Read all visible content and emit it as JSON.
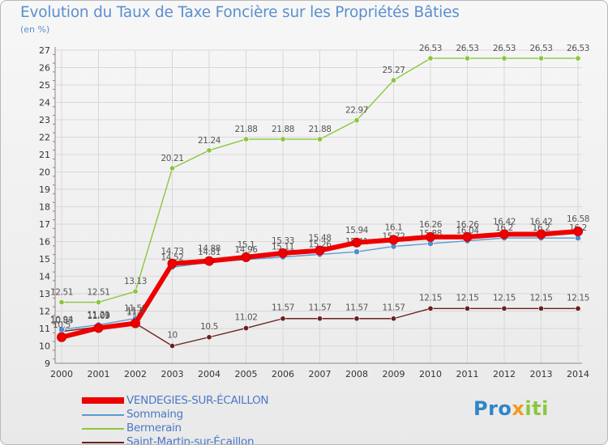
{
  "chart_data": {
    "type": "line",
    "title": "Evolution du Taux de Taxe Foncière sur les Propriétés Bâties",
    "subtitle": "(en %)",
    "xlabel": "",
    "ylabel": "(en %)",
    "ylim": [
      9,
      27
    ],
    "yticks": [
      9,
      10,
      11,
      12,
      13,
      14,
      15,
      16,
      17,
      18,
      19,
      20,
      21,
      22,
      23,
      24,
      25,
      26,
      27
    ],
    "x": [
      "2000",
      "2001",
      "2002",
      "2003",
      "2004",
      "2005",
      "2006",
      "2007",
      "2008",
      "2009",
      "2010",
      "2011",
      "2012",
      "2013",
      "2014"
    ],
    "grid": true,
    "series": [
      {
        "name": "Saint-Martin-sur-Écaillon",
        "color": "#6b2020",
        "values": [
          10.83,
          11.09,
          11.3,
          10,
          10.5,
          11.02,
          11.57,
          11.57,
          11.57,
          11.57,
          12.15,
          12.15,
          12.15,
          12.15,
          12.15
        ],
        "labels": [
          "10.83",
          "11.09",
          "11.3",
          "10",
          "10.5",
          "11.02",
          "11.57",
          "11.57",
          "11.57",
          "11.57",
          "12.15",
          "12.15",
          "12.15",
          "12.15",
          "12.15"
        ]
      },
      {
        "name": "Bermerain",
        "color": "#8cc63e",
        "values": [
          12.51,
          12.51,
          13.13,
          20.21,
          21.24,
          21.88,
          21.88,
          21.88,
          22.97,
          25.27,
          26.53,
          26.53,
          26.53,
          26.53,
          26.53
        ],
        "labels": [
          "12.51",
          "12.51",
          "13.13",
          "20.21",
          "21.24",
          "21.88",
          "21.88",
          "21.88",
          "22.97",
          "25.27",
          "26.53",
          "26.53",
          "26.53",
          "26.53",
          "26.53"
        ]
      },
      {
        "name": "Sommaing",
        "color": "#5b9bd5",
        "values": [
          10.94,
          11.21,
          11.58,
          14.52,
          14.81,
          14.96,
          15.11,
          15.26,
          15.41,
          15.72,
          15.88,
          16.04,
          16.2,
          16.2,
          16.2
        ],
        "labels": [
          "10.94",
          "11.21",
          "11.58",
          "14.52",
          "14.81",
          "14.96",
          "15.11",
          "15.26",
          "15.41",
          "15.72",
          "15.88",
          "16.04",
          "16.2",
          "16.2",
          "16.2"
        ]
      },
      {
        "name": "VENDEGIES-SUR-ÉCAILLON",
        "color": "#ee0000",
        "values": [
          10.5,
          11.03,
          11.3,
          14.73,
          14.88,
          15.1,
          15.33,
          15.48,
          15.94,
          16.1,
          16.26,
          16.26,
          16.42,
          16.42,
          16.58
        ],
        "labels": [
          "10.5",
          "11.03",
          "11.3",
          "14.73",
          "14.88",
          "15.1",
          "15.33",
          "15.48",
          "15.94",
          "16.1",
          "16.26",
          "16.26",
          "16.42",
          "16.42",
          "16.58"
        ]
      }
    ],
    "legend": {
      "position": "bottom-left",
      "items": [
        {
          "name": "VENDEGIES-SUR-ÉCAILLON",
          "color": "#ee0000"
        },
        {
          "name": "Sommaing",
          "color": "#5b9bd5"
        },
        {
          "name": "Bermerain",
          "color": "#8cc63e"
        },
        {
          "name": "Saint-Martin-sur-Écaillon",
          "color": "#6b2020"
        }
      ]
    }
  },
  "logo": {
    "part1": "Pro",
    "part2": "x",
    "part3": "iti"
  }
}
